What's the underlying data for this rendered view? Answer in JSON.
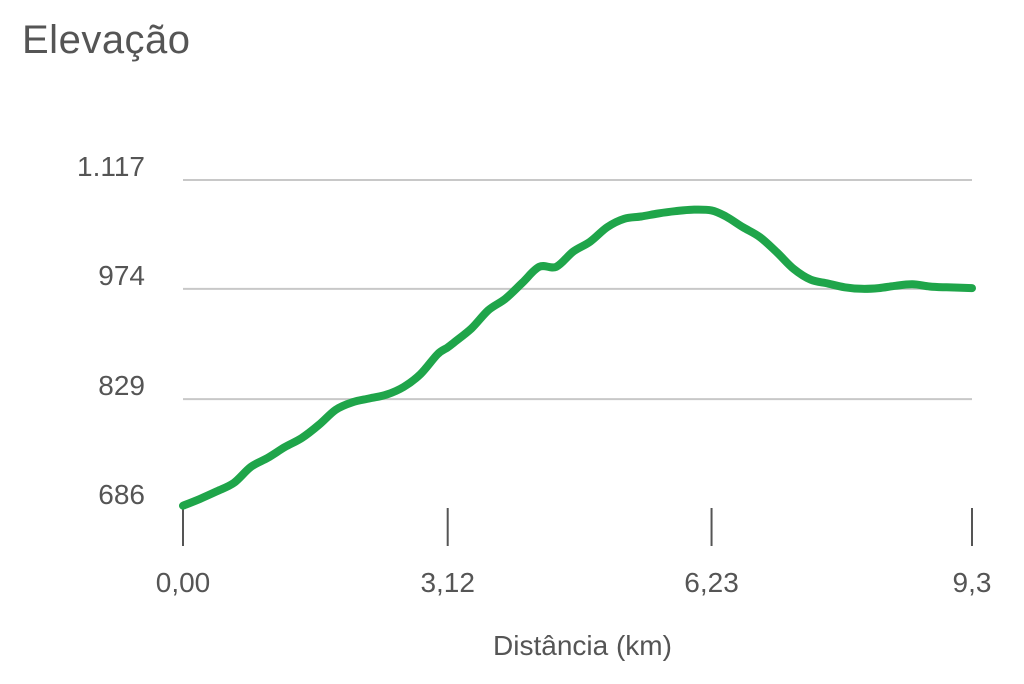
{
  "chart_data": {
    "type": "line",
    "title": "Elevação",
    "xlabel": "Distância (km)",
    "ylabel": "",
    "x_tick_labels": [
      "0,00",
      "3,12",
      "6,23",
      "9,3"
    ],
    "x_ticks": [
      0,
      3.12,
      6.23,
      9.3
    ],
    "y_tick_labels": [
      "686",
      "829",
      "974",
      "1.117"
    ],
    "y_ticks": [
      686,
      829,
      974,
      1117
    ],
    "xlim": [
      0,
      9.3
    ],
    "ylim": [
      686,
      1117
    ],
    "grid": true,
    "line_color": "#1fa54a",
    "series": [
      {
        "x": [
          0,
          0.2,
          0.4,
          0.6,
          0.8,
          1.0,
          1.2,
          1.4,
          1.6,
          1.8,
          2.0,
          2.2,
          2.4,
          2.6,
          2.8,
          3.0,
          3.12,
          3.2,
          3.4,
          3.6,
          3.8,
          4.0,
          4.2,
          4.4,
          4.6,
          4.8,
          5.0,
          5.2,
          5.4,
          5.6,
          5.8,
          6.0,
          6.23,
          6.4,
          6.6,
          6.8,
          7.0,
          7.2,
          7.4,
          7.6,
          7.8,
          8.0,
          8.2,
          8.4,
          8.6,
          8.8,
          9.0,
          9.3
        ],
        "y": [
          689,
          698,
          708,
          719,
          740,
          752,
          766,
          778,
          795,
          815,
          825,
          830,
          835,
          845,
          862,
          888,
          897,
          904,
          922,
          946,
          961,
          982,
          1003,
          1003,
          1023,
          1036,
          1055,
          1066,
          1069,
          1073,
          1076,
          1078,
          1077,
          1069,
          1055,
          1042,
          1022,
          1000,
          986,
          981,
          976,
          974,
          975,
          978,
          980,
          977,
          976,
          975
        ]
      }
    ]
  }
}
